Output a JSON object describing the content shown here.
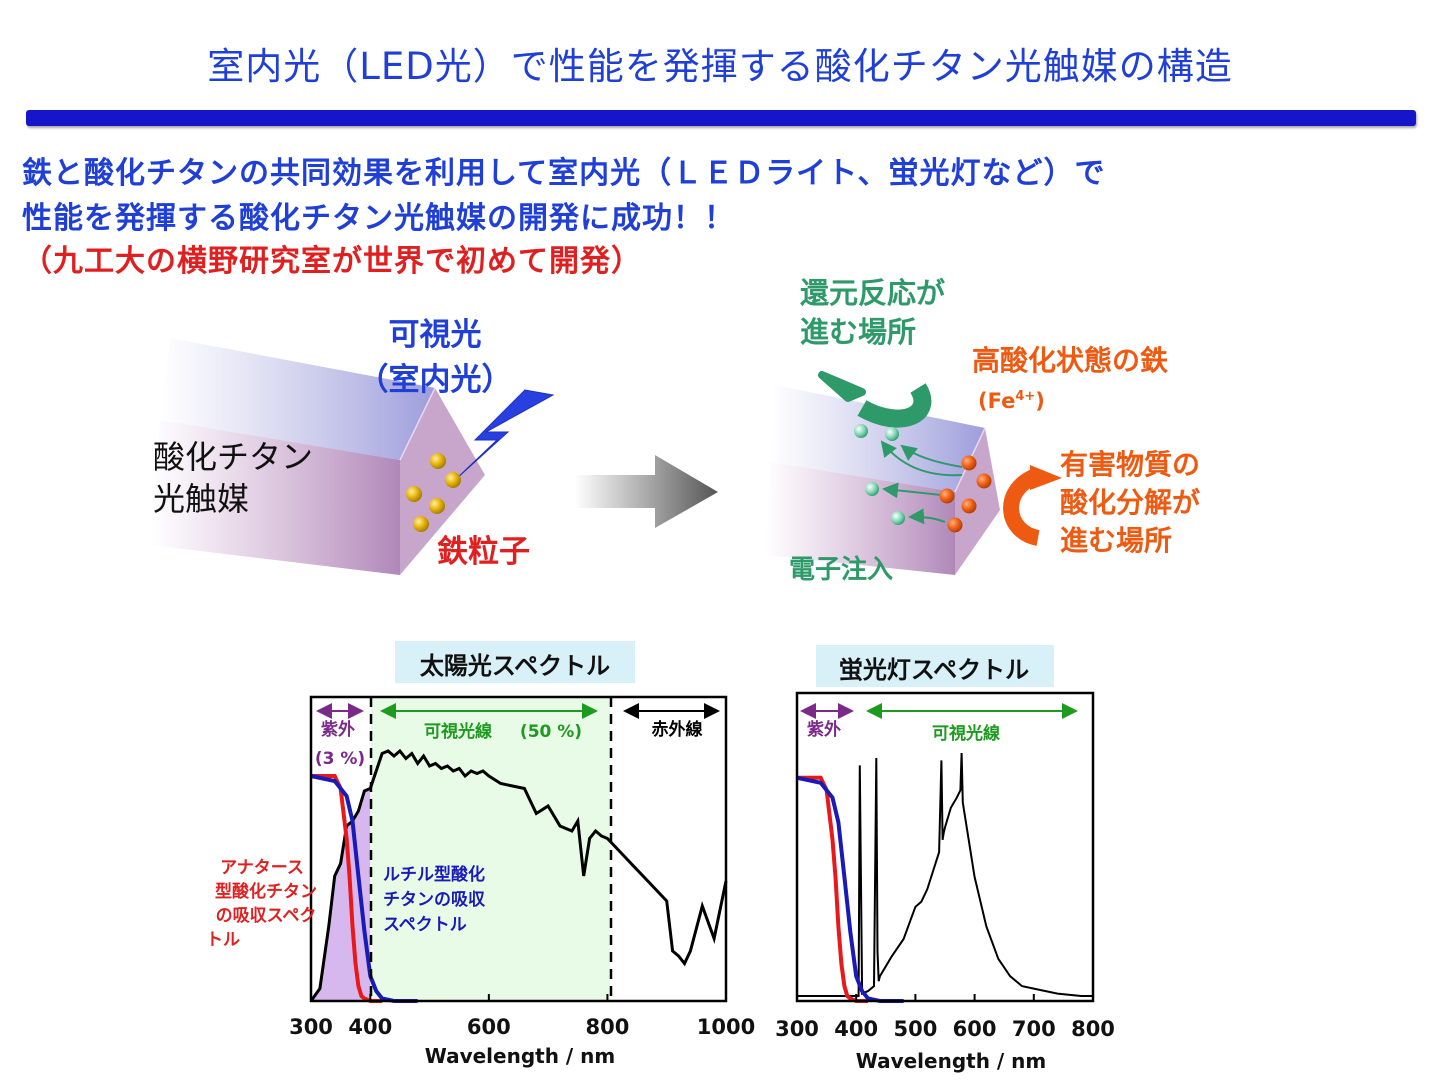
{
  "title": "室内光（LED光）で性能を発揮する酸化チタン光触媒の構造",
  "lead": {
    "line1": "鉄と酸化チタンの共同効果を利用して室内光（ＬＥＤライト、蛍光灯など）で",
    "line2": "性能を発揮する酸化チタン光触媒の開発に成功！！",
    "line3": "（九工大の横野研究室が世界で初めて開発）"
  },
  "diagram": {
    "visible_light": "可視光",
    "indoor_light": "（室内光）",
    "catalyst_line1": "酸化チタン",
    "catalyst_line2": "光触媒",
    "iron_particles": "鉄粒子",
    "reduction_line1": "還元反応が",
    "reduction_line2": "進む場所",
    "high_iron": "高酸化状態の鉄",
    "fe_label": "(Fe",
    "fe_sup": "4+",
    "fe_close": ")",
    "harmful_line1": "有害物質の",
    "harmful_line2": "酸化分解が",
    "harmful_line3": "進む場所",
    "electron_injection": "電子注入"
  },
  "colors": {
    "title_blue": "#1f3fd6",
    "lead_red": "#e02020",
    "green": "#2e9a6a",
    "orange": "#ee5a12",
    "anatase_red": "#e8191b",
    "rutile_blue": "#1a1ab8",
    "uv_purple": "#7b2a8a",
    "visible_green": "#1e9a1e"
  },
  "chart_data": [
    {
      "type": "line",
      "title": "太陽光スペクトル",
      "xlabel": "Wavelength / nm",
      "xlim": [
        300,
        1000
      ],
      "xticks": [
        "300",
        "400",
        "600",
        "800",
        "1000"
      ],
      "regions": {
        "uv": "紫外",
        "uv_pct": "(3 %)",
        "visible": "可視光線",
        "visible_pct": "(50 %)",
        "ir": "赤外線"
      },
      "annotations": {
        "anatase_lines": [
          "アナタース",
          "型酸化チタン",
          "の吸収スペク",
          "トル"
        ],
        "rutile_lines": [
          "ルチル型酸化",
          "チタンの吸収",
          "スペクトル"
        ]
      },
      "series": [
        {
          "x": [
            300,
            315,
            330,
            340,
            350,
            360,
            370,
            380,
            390,
            400,
            410,
            420,
            430,
            440,
            450,
            460,
            470,
            480,
            490,
            500,
            510,
            520,
            530,
            540,
            550,
            560,
            570,
            580,
            590,
            600,
            620,
            640,
            660,
            680,
            700,
            720,
            740,
            750,
            760,
            770,
            780,
            790,
            800,
            820,
            840,
            860,
            880,
            900,
            910,
            920,
            930,
            940,
            960,
            980,
            1000
          ],
          "values": [
            0.0,
            0.05,
            0.3,
            0.5,
            0.55,
            0.7,
            0.72,
            0.76,
            0.84,
            0.85,
            0.92,
            0.99,
            1.0,
            0.98,
            1.0,
            0.97,
            0.99,
            0.95,
            0.98,
            0.94,
            0.95,
            0.93,
            0.94,
            0.92,
            0.93,
            0.9,
            0.92,
            0.91,
            0.92,
            0.9,
            0.87,
            0.86,
            0.85,
            0.75,
            0.78,
            0.7,
            0.68,
            0.72,
            0.5,
            0.65,
            0.68,
            0.66,
            0.65,
            0.6,
            0.55,
            0.5,
            0.45,
            0.4,
            0.2,
            0.18,
            0.15,
            0.2,
            0.38,
            0.25,
            0.48
          ]
        },
        {
          "x": [
            300,
            340,
            350,
            360,
            365,
            370,
            375,
            380,
            385,
            390,
            400,
            420
          ],
          "values": [
            0.9,
            0.9,
            0.85,
            0.65,
            0.5,
            0.3,
            0.15,
            0.06,
            0.02,
            0.01,
            0.0,
            0.0
          ]
        },
        {
          "x": [
            300,
            340,
            360,
            370,
            380,
            390,
            400,
            410,
            420,
            440,
            480
          ],
          "values": [
            0.9,
            0.88,
            0.82,
            0.72,
            0.5,
            0.28,
            0.1,
            0.04,
            0.01,
            0.0,
            0.0
          ]
        }
      ]
    },
    {
      "type": "line",
      "title": "蛍光灯スペクトル",
      "xlabel": "Wavelength / nm",
      "xlim": [
        300,
        800
      ],
      "xticks": [
        "300",
        "400",
        "500",
        "600",
        "700",
        "800"
      ],
      "regions": {
        "uv": "紫外",
        "visible": "可視光線"
      },
      "series": [
        {
          "x": [
            300,
            400,
            404,
            406,
            410,
            420,
            430,
            434,
            436,
            438,
            440,
            460,
            480,
            500,
            510,
            520,
            540,
            544,
            546,
            548,
            550,
            560,
            570,
            576,
            578,
            580,
            590,
            600,
            620,
            640,
            660,
            680,
            700,
            740,
            780,
            800
          ],
          "values": [
            0.02,
            0.02,
            0.02,
            0.95,
            0.03,
            0.04,
            0.06,
            0.98,
            0.2,
            0.08,
            0.1,
            0.18,
            0.25,
            0.38,
            0.4,
            0.45,
            0.6,
            0.97,
            0.65,
            0.68,
            0.7,
            0.78,
            0.82,
            0.85,
            1.0,
            0.8,
            0.65,
            0.5,
            0.3,
            0.17,
            0.1,
            0.06,
            0.05,
            0.03,
            0.02,
            0.02
          ]
        },
        {
          "x": [
            300,
            340,
            350,
            360,
            365,
            370,
            375,
            380,
            385,
            390,
            400,
            420
          ],
          "values": [
            0.9,
            0.9,
            0.85,
            0.65,
            0.5,
            0.3,
            0.15,
            0.06,
            0.02,
            0.01,
            0.0,
            0.0
          ]
        },
        {
          "x": [
            300,
            340,
            360,
            370,
            380,
            390,
            400,
            410,
            420,
            440,
            480
          ],
          "values": [
            0.9,
            0.88,
            0.82,
            0.72,
            0.5,
            0.28,
            0.1,
            0.04,
            0.01,
            0.0,
            0.0
          ]
        }
      ]
    }
  ]
}
